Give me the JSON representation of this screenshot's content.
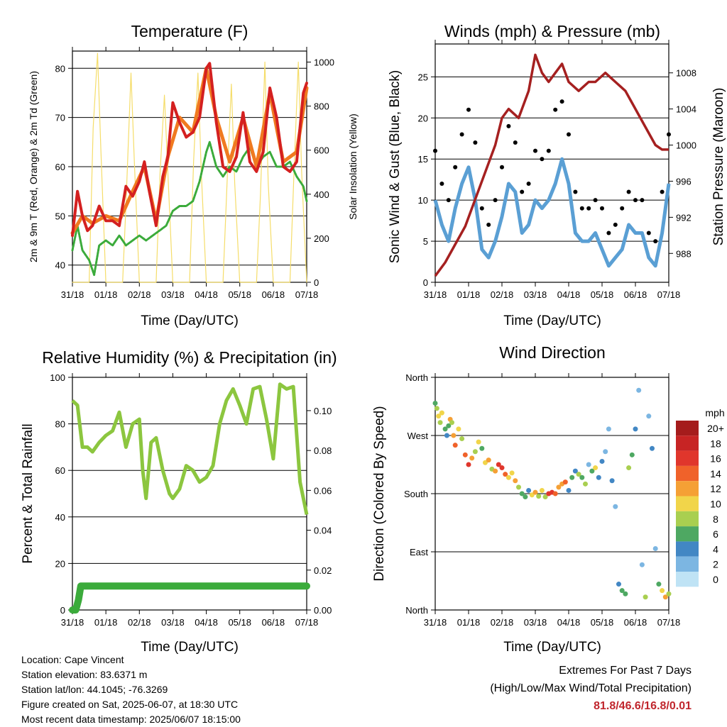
{
  "x_tick_labels": [
    "31/18",
    "01/18",
    "02/18",
    "03/18",
    "04/18",
    "05/18",
    "06/18",
    "07/18"
  ],
  "x_label": "Time (Day/UTC)",
  "colors": {
    "temp_2m": "#d42020",
    "temp_9m": "#f07a20",
    "dewpoint": "#3bab3b",
    "solar": "#f5dd6a",
    "wind": "#5a9fd4",
    "gust": "#000000",
    "pressure": "#a52020",
    "rh": "#8cc63f",
    "precip": "#3bab3b",
    "extremes": "#c0262d"
  },
  "chart_data": [
    {
      "id": "temperature",
      "type": "line",
      "title": "Temperature (F)",
      "xlabel": "Time (Day/UTC)",
      "ylabel": "2m & 9m T (Red, Orange) & 2m Td (Green)",
      "y2label": "Solar Insolation (Yellow)",
      "ylim": [
        36.5,
        83.5
      ],
      "yticks": [
        40,
        50,
        60,
        70,
        80
      ],
      "y2lim": [
        0,
        1050
      ],
      "y2ticks": [
        0,
        200,
        400,
        600,
        800,
        1000
      ],
      "grid": true,
      "series": [
        {
          "key": "temp_2m",
          "axis": "left",
          "x": [
            0,
            0.15,
            0.3,
            0.45,
            0.6,
            0.8,
            1.0,
            1.2,
            1.4,
            1.6,
            1.8,
            2.0,
            2.15,
            2.3,
            2.5,
            2.7,
            2.85,
            3.0,
            3.2,
            3.4,
            3.6,
            3.8,
            4.0,
            4.1,
            4.3,
            4.5,
            4.7,
            4.9,
            5.1,
            5.3,
            5.5,
            5.7,
            5.9,
            6.1,
            6.3,
            6.5,
            6.7,
            6.9,
            7.0
          ],
          "values": [
            46,
            55,
            50,
            47,
            48,
            52,
            49,
            49,
            48,
            56,
            54,
            57,
            61,
            55,
            48,
            58,
            62,
            73,
            69,
            66,
            67,
            70,
            80,
            81,
            69,
            60,
            59,
            62,
            71,
            61,
            59,
            63,
            76,
            70,
            60,
            59,
            61,
            75,
            77
          ]
        },
        {
          "key": "temp_9m",
          "axis": "left",
          "x": [
            0,
            0.3,
            0.6,
            1.0,
            1.4,
            1.8,
            2.15,
            2.5,
            2.85,
            3.2,
            3.6,
            4.0,
            4.3,
            4.7,
            5.1,
            5.5,
            5.9,
            6.3,
            6.7,
            7.0
          ],
          "values": [
            46.5,
            50,
            48.5,
            50,
            49,
            55,
            60,
            49,
            62,
            70,
            67,
            80,
            70,
            61,
            70,
            60,
            75,
            61,
            63,
            76
          ]
        },
        {
          "key": "dewpoint",
          "axis": "left",
          "x": [
            0,
            0.15,
            0.3,
            0.5,
            0.65,
            0.8,
            1.0,
            1.2,
            1.4,
            1.6,
            1.8,
            2.0,
            2.2,
            2.4,
            2.6,
            2.8,
            3.0,
            3.2,
            3.4,
            3.6,
            3.8,
            4.0,
            4.1,
            4.3,
            4.5,
            4.7,
            4.9,
            5.1,
            5.3,
            5.5,
            5.7,
            5.9,
            6.1,
            6.3,
            6.5,
            6.7,
            6.9,
            7.0
          ],
          "values": [
            43,
            48,
            43,
            41,
            38,
            44,
            45,
            44,
            46,
            44,
            45,
            46,
            45,
            46,
            47,
            48,
            51,
            52,
            52,
            53,
            57,
            63,
            65,
            60,
            58,
            60,
            59,
            62,
            64,
            60,
            62,
            63,
            60,
            60,
            61,
            58,
            56,
            53
          ]
        },
        {
          "key": "solar",
          "axis": "right",
          "x": [
            0,
            0.2,
            0.35,
            0.5,
            0.62,
            0.75,
            0.85,
            1.0,
            1.2,
            1.35,
            1.5,
            1.6,
            1.75,
            1.85,
            2.0,
            2.2,
            2.35,
            2.5,
            2.62,
            2.75,
            2.85,
            3.0,
            3.2,
            3.35,
            3.5,
            3.62,
            3.75,
            3.85,
            4.0,
            4.2,
            4.35,
            4.5,
            4.62,
            4.75,
            4.85,
            5.0,
            5.2,
            5.35,
            5.5,
            5.62,
            5.75,
            5.85,
            6.0,
            6.2,
            6.35,
            6.5,
            6.62,
            6.75,
            6.85,
            7.0
          ],
          "values": [
            0,
            0,
            0,
            0,
            700,
            1040,
            600,
            0,
            0,
            0,
            0,
            350,
            950,
            550,
            0,
            0,
            0,
            0,
            500,
            850,
            500,
            0,
            0,
            0,
            0,
            550,
            950,
            500,
            0,
            0,
            0,
            0,
            450,
            900,
            450,
            0,
            0,
            0,
            0,
            400,
            1000,
            450,
            0,
            0,
            0,
            0,
            500,
            1000,
            500,
            0
          ]
        }
      ]
    },
    {
      "id": "winds_pressure",
      "type": "scatter",
      "title": "Winds (mph) & Pressure (mb)",
      "xlabel": "Time (Day/UTC)",
      "ylabel": "Sonic Wind & Gust (Blue, Black)",
      "y2label": "Station Pressure (Maroon)",
      "ylim": [
        0,
        29
      ],
      "yticks": [
        0,
        5,
        10,
        15,
        20,
        25
      ],
      "y2lim": [
        984.8,
        1011.2
      ],
      "y2ticks": [
        988,
        992,
        996,
        1000,
        1004,
        1008
      ],
      "grid": true,
      "series": [
        {
          "key": "wind",
          "axis": "left",
          "x": [
            0,
            0.2,
            0.4,
            0.6,
            0.8,
            1.0,
            1.2,
            1.4,
            1.6,
            1.8,
            2.0,
            2.2,
            2.4,
            2.6,
            2.8,
            3.0,
            3.2,
            3.4,
            3.6,
            3.8,
            4.0,
            4.2,
            4.4,
            4.6,
            4.8,
            5.0,
            5.2,
            5.4,
            5.6,
            5.8,
            6.0,
            6.2,
            6.4,
            6.6,
            6.8,
            7.0
          ],
          "values": [
            10,
            7,
            5,
            9,
            12,
            14,
            10,
            4,
            3,
            5,
            8,
            12,
            11,
            6,
            7,
            10,
            9,
            10,
            12,
            15,
            12,
            6,
            5,
            5,
            6,
            4,
            2,
            3,
            4,
            7,
            6,
            6,
            3,
            2,
            6,
            12
          ]
        },
        {
          "key": "gust",
          "axis": "left",
          "x": [
            0,
            0.2,
            0.4,
            0.6,
            0.8,
            1.0,
            1.2,
            1.4,
            1.6,
            1.8,
            2.0,
            2.2,
            2.4,
            2.6,
            2.8,
            3.0,
            3.2,
            3.4,
            3.6,
            3.8,
            4.0,
            4.2,
            4.4,
            4.6,
            4.8,
            5.0,
            5.2,
            5.4,
            5.6,
            5.8,
            6.0,
            6.2,
            6.4,
            6.6,
            6.8,
            7.0
          ],
          "values": [
            16,
            12,
            10,
            14,
            18,
            21,
            17,
            9,
            7,
            10,
            14,
            19,
            17,
            11,
            12,
            16,
            15,
            16,
            21,
            22,
            18,
            11,
            9,
            9,
            10,
            9,
            6,
            7,
            9,
            11,
            10,
            10,
            6,
            5,
            11,
            18
          ]
        },
        {
          "key": "pressure",
          "axis": "right",
          "x": [
            0,
            0.3,
            0.6,
            0.9,
            1.2,
            1.5,
            1.8,
            2.0,
            2.2,
            2.5,
            2.8,
            3.0,
            3.2,
            3.4,
            3.6,
            3.8,
            4.0,
            4.3,
            4.6,
            4.8,
            5.1,
            5.4,
            5.7,
            6.0,
            6.3,
            6.6,
            6.8,
            7.0
          ],
          "values": [
            985.5,
            987,
            989,
            991,
            994,
            997,
            1000,
            1003,
            1004,
            1003,
            1006,
            1010,
            1008,
            1007,
            1008,
            1009,
            1007,
            1006,
            1007,
            1007,
            1008,
            1007,
            1006,
            1004,
            1002,
            1000,
            999.5,
            999.5
          ]
        }
      ]
    },
    {
      "id": "rh_precip",
      "type": "line",
      "title": "Relative Humidity (%) & Precipitation (in)",
      "xlabel": "Time (Day/UTC)",
      "ylabel": "Percent & Total Rainfall",
      "ylim": [
        0,
        100
      ],
      "yticks": [
        0,
        20,
        40,
        60,
        80,
        100
      ],
      "y2lim": [
        0,
        0.1167
      ],
      "y2ticks": [
        0.0,
        0.02,
        0.04,
        0.06,
        0.08,
        0.1
      ],
      "y2ticklabels": [
        "0.00",
        "0.02",
        "0.04",
        "0.06",
        "0.08",
        "0.10"
      ],
      "grid": true,
      "series": [
        {
          "key": "rh",
          "axis": "left",
          "x": [
            0,
            0.15,
            0.3,
            0.45,
            0.6,
            0.8,
            1.0,
            1.2,
            1.4,
            1.6,
            1.8,
            2.0,
            2.1,
            2.2,
            2.35,
            2.5,
            2.7,
            2.9,
            3.0,
            3.2,
            3.4,
            3.6,
            3.8,
            4.0,
            4.2,
            4.4,
            4.6,
            4.8,
            5.0,
            5.2,
            5.4,
            5.6,
            5.8,
            6.0,
            6.2,
            6.4,
            6.6,
            6.8,
            7.0
          ],
          "values": [
            90,
            88,
            70,
            70,
            68,
            72,
            75,
            77,
            85,
            70,
            80,
            82,
            60,
            48,
            72,
            74,
            60,
            50,
            48,
            52,
            62,
            60,
            55,
            57,
            62,
            80,
            90,
            95,
            88,
            80,
            95,
            96,
            82,
            65,
            97,
            95,
            96,
            55,
            41
          ]
        },
        {
          "key": "precip",
          "axis": "right",
          "x": [
            0,
            0.1,
            0.18,
            0.25,
            7.0
          ],
          "values": [
            0,
            0,
            0.005,
            0.012,
            0.012
          ]
        }
      ]
    },
    {
      "id": "wind_direction",
      "type": "scatter",
      "title": "Wind Direction",
      "xlabel": "Time (Day/UTC)",
      "ylabel": "Direction (Colored By Speed)",
      "ylim": [
        0,
        360
      ],
      "ytick_labels": [
        "North",
        "East",
        "South",
        "West",
        "North"
      ],
      "yticks": [
        0,
        90,
        180,
        270,
        360
      ],
      "grid": true,
      "legend_title": "mph",
      "legend_labels": [
        "20+",
        "18",
        "16",
        "14",
        "12",
        "10",
        "8",
        "6",
        "4",
        "2",
        "0"
      ],
      "legend_colors": [
        "#a51c1c",
        "#c72424",
        "#e0362c",
        "#f0622a",
        "#f5a035",
        "#f1d54a",
        "#a9cf50",
        "#4ea862",
        "#4287c4",
        "#7cb6e2",
        "#bfe3f5"
      ],
      "legend_placement": "right",
      "points": [
        [
          0.0,
          320,
          6
        ],
        [
          0.05,
          312,
          8
        ],
        [
          0.1,
          300,
          10
        ],
        [
          0.15,
          290,
          7
        ],
        [
          0.2,
          305,
          9
        ],
        [
          0.3,
          280,
          5
        ],
        [
          0.35,
          270,
          4
        ],
        [
          0.4,
          285,
          6
        ],
        [
          0.45,
          295,
          11
        ],
        [
          0.5,
          290,
          8
        ],
        [
          0.55,
          270,
          12
        ],
        [
          0.6,
          255,
          13
        ],
        [
          0.7,
          280,
          9
        ],
        [
          0.8,
          265,
          7
        ],
        [
          0.9,
          240,
          14
        ],
        [
          1.0,
          225,
          16
        ],
        [
          1.1,
          235,
          12
        ],
        [
          1.2,
          245,
          8
        ],
        [
          1.3,
          260,
          10
        ],
        [
          1.4,
          250,
          6
        ],
        [
          1.5,
          228,
          9
        ],
        [
          1.6,
          232,
          11
        ],
        [
          1.7,
          218,
          7
        ],
        [
          1.8,
          215,
          12
        ],
        [
          1.9,
          225,
          15
        ],
        [
          2.0,
          220,
          16
        ],
        [
          2.1,
          210,
          13
        ],
        [
          2.2,
          205,
          9
        ],
        [
          2.3,
          212,
          10
        ],
        [
          2.4,
          200,
          11
        ],
        [
          2.5,
          190,
          8
        ],
        [
          2.6,
          180,
          6
        ],
        [
          2.7,
          175,
          5
        ],
        [
          2.8,
          185,
          4
        ],
        [
          2.9,
          178,
          9
        ],
        [
          3.0,
          182,
          12
        ],
        [
          3.1,
          176,
          8
        ],
        [
          3.2,
          185,
          10
        ],
        [
          3.3,
          175,
          7
        ],
        [
          3.4,
          180,
          15
        ],
        [
          3.5,
          182,
          16
        ],
        [
          3.6,
          180,
          14
        ],
        [
          3.7,
          190,
          11
        ],
        [
          3.8,
          195,
          12
        ],
        [
          3.9,
          198,
          13
        ],
        [
          4.0,
          185,
          4
        ],
        [
          4.1,
          205,
          6
        ],
        [
          4.2,
          215,
          3
        ],
        [
          4.3,
          210,
          8
        ],
        [
          4.4,
          205,
          5
        ],
        [
          4.5,
          195,
          7
        ],
        [
          4.6,
          225,
          2
        ],
        [
          4.7,
          215,
          5
        ],
        [
          4.8,
          220,
          9
        ],
        [
          4.9,
          205,
          4
        ],
        [
          5.0,
          230,
          3
        ],
        [
          5.1,
          245,
          2
        ],
        [
          5.2,
          280,
          1
        ],
        [
          5.3,
          200,
          3
        ],
        [
          5.4,
          160,
          1
        ],
        [
          5.5,
          40,
          4
        ],
        [
          5.6,
          30,
          6
        ],
        [
          5.7,
          25,
          5
        ],
        [
          5.8,
          220,
          7
        ],
        [
          5.9,
          240,
          5
        ],
        [
          6.0,
          280,
          3
        ],
        [
          6.1,
          340,
          2
        ],
        [
          6.2,
          70,
          2
        ],
        [
          6.3,
          20,
          8
        ],
        [
          6.4,
          300,
          1
        ],
        [
          6.5,
          250,
          4
        ],
        [
          6.6,
          95,
          2
        ],
        [
          6.7,
          40,
          6
        ],
        [
          6.8,
          30,
          9
        ],
        [
          6.9,
          20,
          12
        ],
        [
          7.0,
          25,
          8
        ]
      ]
    }
  ],
  "info": {
    "location": "Location: Cape Vincent",
    "elevation": "Station elevation: 83.6371 m",
    "latlon": "Station lat/lon: 44.1045; -76.3269",
    "created": "Figure created on Sat, 2025-06-07, at 18:30 UTC",
    "recent": "Most recent data timestamp: 2025/06/07 18:15:00"
  },
  "extremes": {
    "title": "Extremes For Past 7 Days",
    "subtitle": "(High/Low/Max Wind/Total Precipitation)",
    "values": "81.8/46.6/16.8/0.01"
  }
}
